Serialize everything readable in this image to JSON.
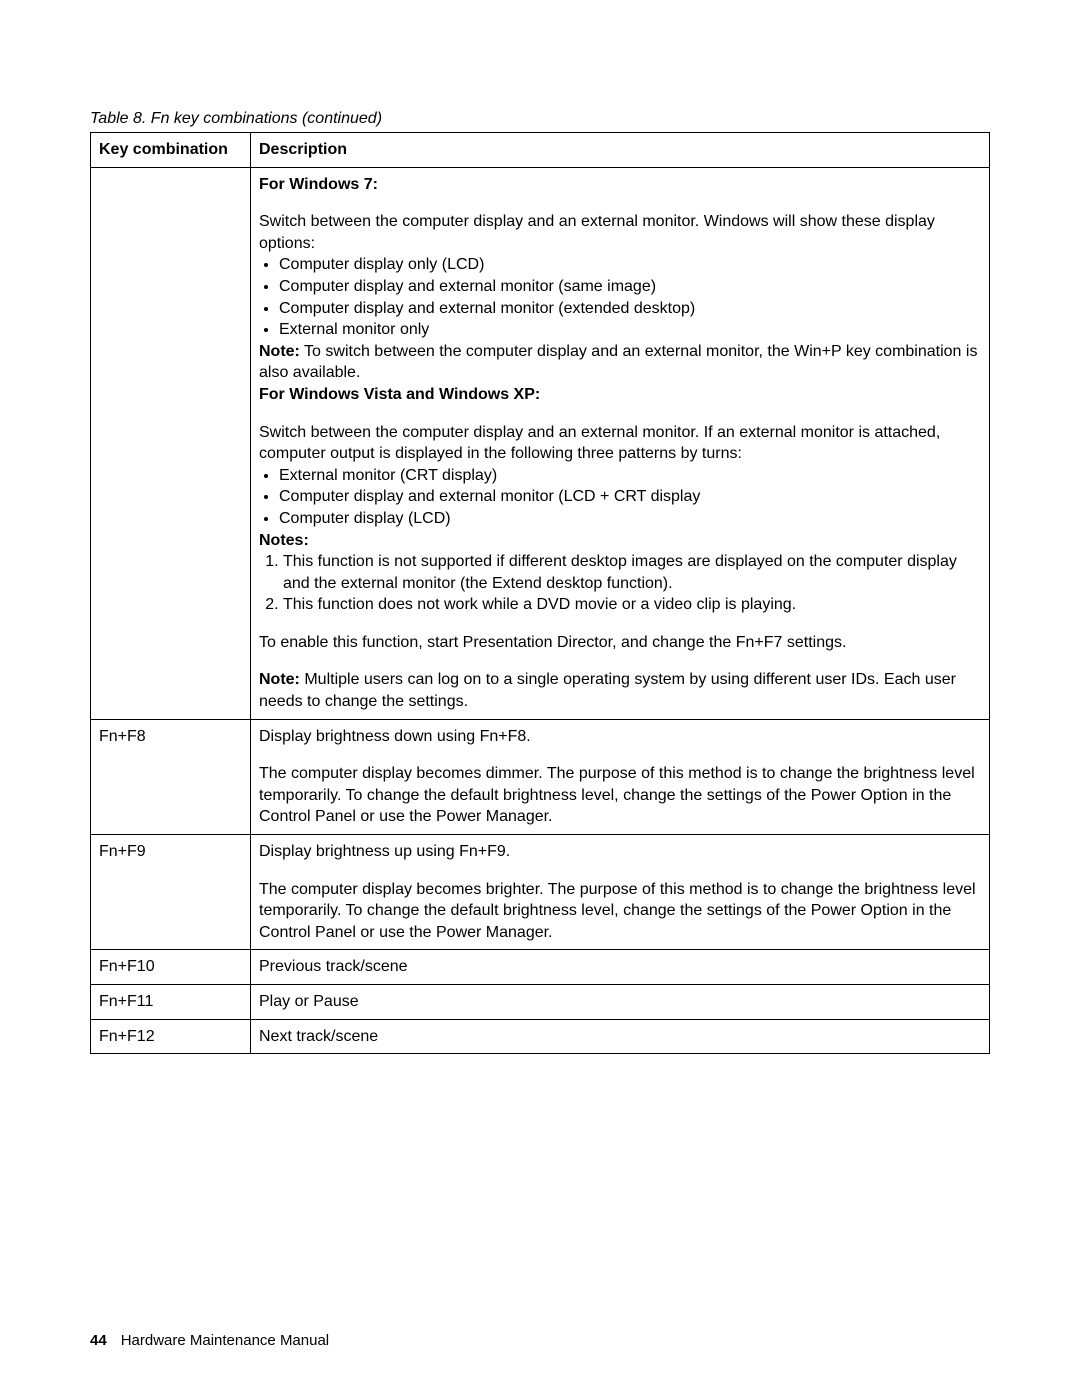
{
  "caption": "Table 8.  Fn key combinations (continued)",
  "header": {
    "col1": "Key combination",
    "col2": "Description"
  },
  "row1": {
    "key": "",
    "h1": "For Windows 7:",
    "p1": "Switch between the computer display and an external monitor. Windows will show these display options:",
    "b1": "Computer display only (LCD)",
    "b2": "Computer display and external monitor (same image)",
    "b3": "Computer display and external monitor (extended desktop)",
    "b4": "External monitor only",
    "note1_label": "Note:",
    "note1_text": " To switch between the computer display and an external monitor, the Win+P key combination is also available.",
    "h2": "For Windows Vista and Windows XP:",
    "p2": "Switch between the computer display and an external monitor. If an external monitor is attached, computer output is displayed in the following three patterns by turns:",
    "b5": "External monitor (CRT display)",
    "b6": "Computer display and external monitor (LCD + CRT display",
    "b7": "Computer display (LCD)",
    "notes_label": "Notes:",
    "n1": "This function is not supported if different desktop images are displayed on the computer display and the external monitor (the Extend desktop function).",
    "n2": "This function does not work while a DVD movie or a video clip is playing.",
    "p3": "To enable this function, start Presentation Director, and change the Fn+F7 settings.",
    "note2_label": "Note:",
    "note2_text": " Multiple users can log on to a single operating system by using different user IDs. Each user needs to change the settings."
  },
  "row2": {
    "key": "Fn+F8",
    "p1": "Display brightness down using Fn+F8.",
    "p2": "The computer display becomes dimmer. The purpose of this method is to change the brightness level temporarily. To change the default brightness level, change the settings of the Power Option in the Control Panel or use the Power Manager."
  },
  "row3": {
    "key": "Fn+F9",
    "p1": "Display brightness up using Fn+F9.",
    "p2": "The computer display becomes brighter. The purpose of this method is to change the brightness level temporarily. To change the default brightness level, change the settings of the Power Option in the Control Panel or use the Power Manager."
  },
  "row4": {
    "key": "Fn+F10",
    "desc": "Previous track/scene"
  },
  "row5": {
    "key": "Fn+F11",
    "desc": "Play or Pause"
  },
  "row6": {
    "key": "Fn+F12",
    "desc": "Next track/scene"
  },
  "footer": {
    "page": "44",
    "title": "Hardware Maintenance Manual"
  }
}
